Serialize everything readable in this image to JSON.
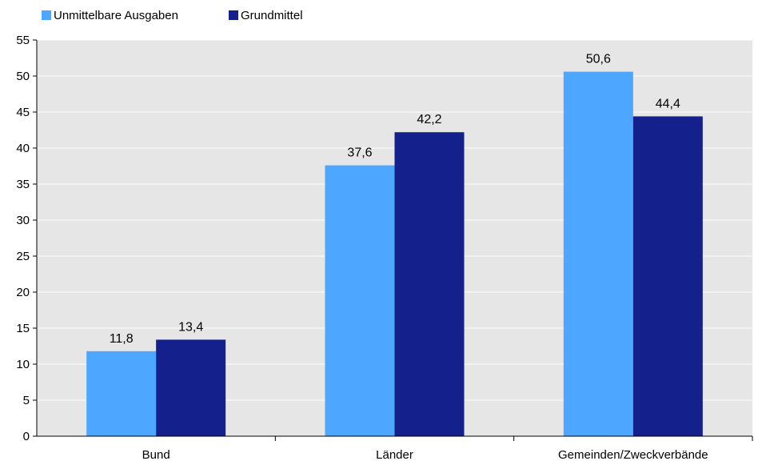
{
  "chart_data": {
    "type": "bar",
    "categories": [
      "Bund",
      "Länder",
      "Gemeinden/Zweckverbände"
    ],
    "series": [
      {
        "name": "Unmittelbare Ausgaben",
        "values": [
          11.8,
          37.6,
          50.6
        ],
        "labels": [
          "11,8",
          "37,6",
          "50,6"
        ],
        "color": "#4da6ff"
      },
      {
        "name": "Grundmittel",
        "values": [
          13.4,
          42.2,
          44.4
        ],
        "labels": [
          "13,4",
          "42,2",
          "44,4"
        ],
        "color": "#14208c"
      }
    ],
    "ylim": [
      0,
      55
    ],
    "yticks": [
      0,
      5,
      10,
      15,
      20,
      25,
      30,
      35,
      40,
      45,
      50,
      55
    ],
    "grid": true,
    "legend_position": "top-left",
    "plot_background": "#e6e6e6",
    "gridline_color": "#ffffff"
  }
}
